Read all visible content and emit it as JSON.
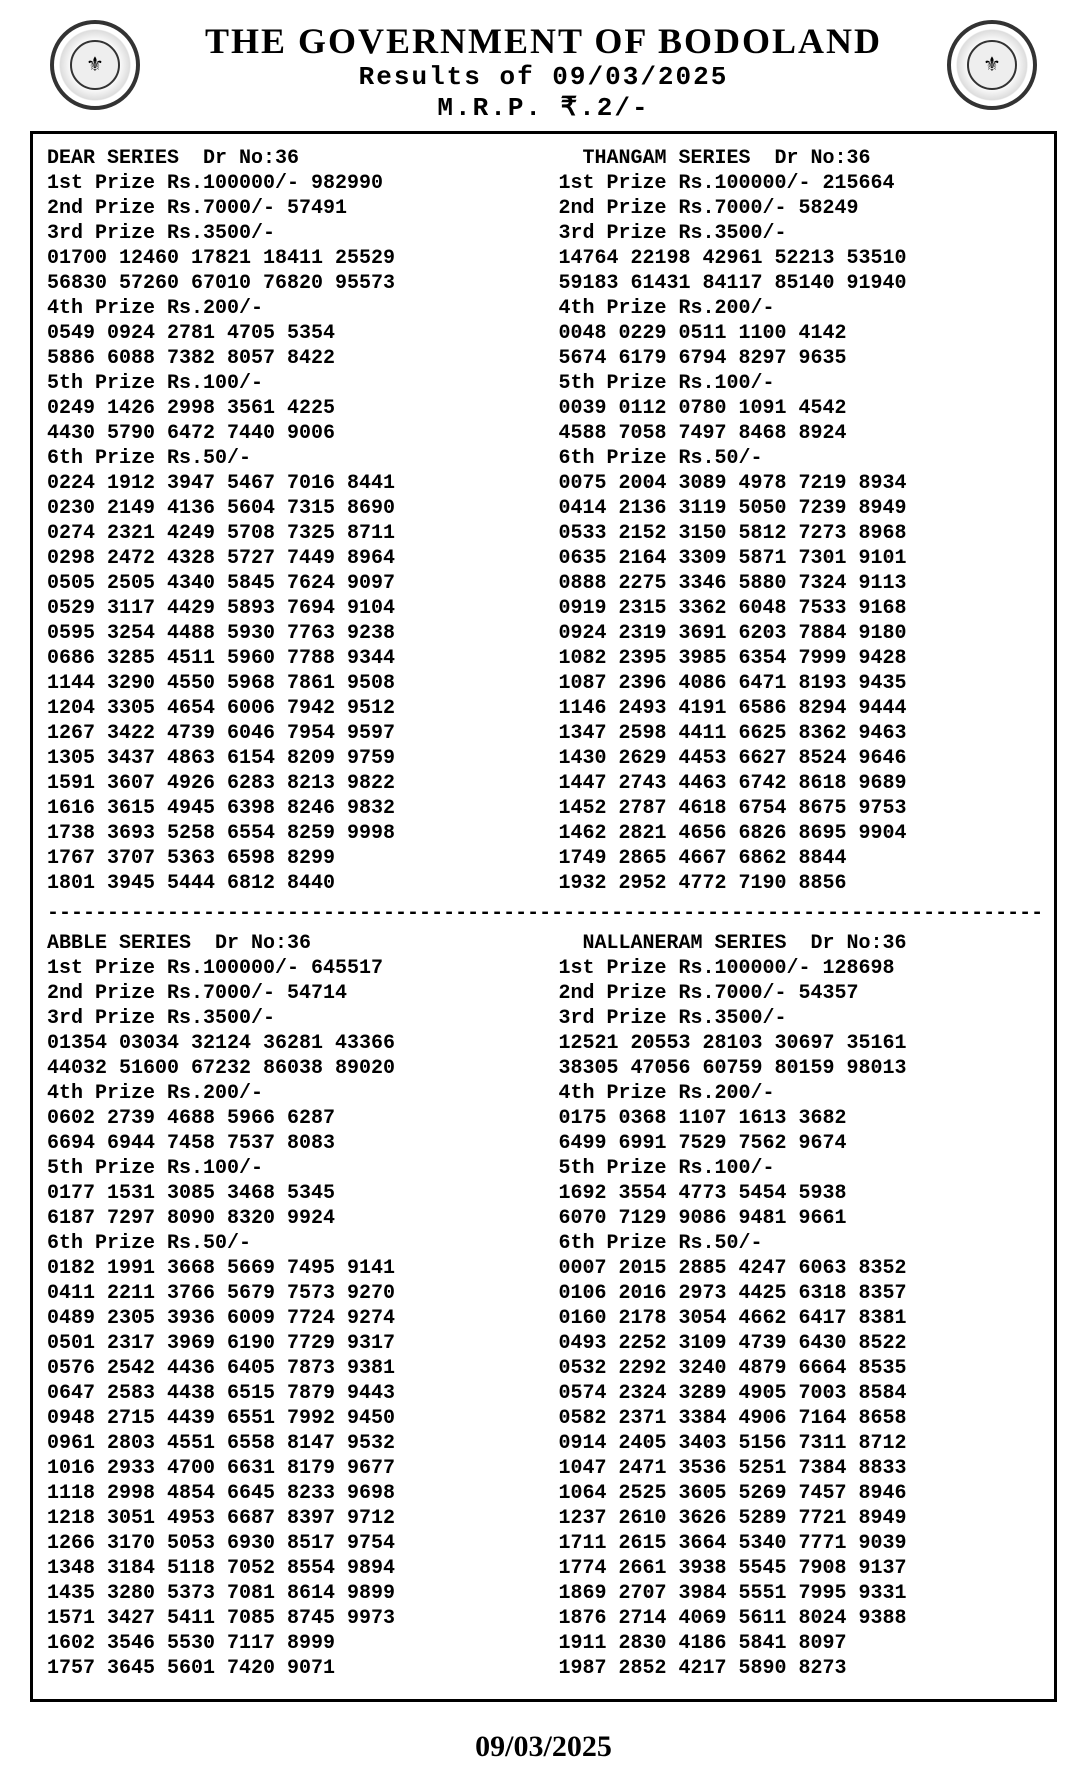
{
  "header": {
    "title": "THE GOVERNMENT OF BODOLAND",
    "subtitle": "Results of 09/03/2025",
    "mrp": "M.R.P.  ₹.2/-"
  },
  "footer_date": "09/03/2025",
  "divider_char": "-",
  "series": [
    {
      "name": "DEAR SERIES",
      "draw": "Dr No:36",
      "prize1_label": "1st Prize Rs.100000/-",
      "prize1_num": "982990",
      "prize2_label": "2nd Prize Rs.7000/-",
      "prize2_num": "57491",
      "prize3_label": "3rd Prize Rs.3500/-",
      "prize3_rows": [
        "01700 12460 17821 18411 25529",
        "56830 57260 67010 76820 95573"
      ],
      "prize4_label": "4th Prize Rs.200/-",
      "prize4_rows": [
        "0549 0924 2781 4705 5354",
        "5886 6088 7382 8057 8422"
      ],
      "prize5_label": "5th Prize Rs.100/-",
      "prize5_rows": [
        "0249 1426 2998 3561 4225",
        "4430 5790 6472 7440 9006"
      ],
      "prize6_label": "6th Prize Rs.50/-",
      "prize6_rows": [
        "0224 1912 3947 5467 7016 8441",
        "0230 2149 4136 5604 7315 8690",
        "0274 2321 4249 5708 7325 8711",
        "0298 2472 4328 5727 7449 8964",
        "0505 2505 4340 5845 7624 9097",
        "0529 3117 4429 5893 7694 9104",
        "0595 3254 4488 5930 7763 9238",
        "0686 3285 4511 5960 7788 9344",
        "1144 3290 4550 5968 7861 9508",
        "1204 3305 4654 6006 7942 9512",
        "1267 3422 4739 6046 7954 9597",
        "1305 3437 4863 6154 8209 9759",
        "1591 3607 4926 6283 8213 9822",
        "1616 3615 4945 6398 8246 9832",
        "1738 3693 5258 6554 8259 9998",
        "1767 3707 5363 6598 8299",
        "1801 3945 5444 6812 8440"
      ]
    },
    {
      "name": "THANGAM SERIES",
      "draw": "Dr No:36",
      "prize1_label": "1st Prize Rs.100000/-",
      "prize1_num": "215664",
      "prize2_label": "2nd Prize Rs.7000/-",
      "prize2_num": "58249",
      "prize3_label": "3rd Prize Rs.3500/-",
      "prize3_rows": [
        "14764 22198 42961 52213 53510",
        "59183 61431 84117 85140 91940"
      ],
      "prize4_label": "4th Prize Rs.200/-",
      "prize4_rows": [
        "0048 0229 0511 1100 4142",
        "5674 6179 6794 8297 9635"
      ],
      "prize5_label": "5th Prize Rs.100/-",
      "prize5_rows": [
        "0039 0112 0780 1091 4542",
        "4588 7058 7497 8468 8924"
      ],
      "prize6_label": "6th Prize Rs.50/-",
      "prize6_rows": [
        "0075 2004 3089 4978 7219 8934",
        "0414 2136 3119 5050 7239 8949",
        "0533 2152 3150 5812 7273 8968",
        "0635 2164 3309 5871 7301 9101",
        "0888 2275 3346 5880 7324 9113",
        "0919 2315 3362 6048 7533 9168",
        "0924 2319 3691 6203 7884 9180",
        "1082 2395 3985 6354 7999 9428",
        "1087 2396 4086 6471 8193 9435",
        "1146 2493 4191 6586 8294 9444",
        "1347 2598 4411 6625 8362 9463",
        "1430 2629 4453 6627 8524 9646",
        "1447 2743 4463 6742 8618 9689",
        "1452 2787 4618 6754 8675 9753",
        "1462 2821 4656 6826 8695 9904",
        "1749 2865 4667 6862 8844",
        "1932 2952 4772 7190 8856"
      ]
    },
    {
      "name": "ABBLE SERIES",
      "draw": "Dr No:36",
      "prize1_label": "1st Prize Rs.100000/-",
      "prize1_num": "645517",
      "prize2_label": "2nd Prize Rs.7000/-",
      "prize2_num": "54714",
      "prize3_label": "3rd Prize Rs.3500/-",
      "prize3_rows": [
        "01354 03034 32124 36281 43366",
        "44032 51600 67232 86038 89020"
      ],
      "prize4_label": "4th Prize Rs.200/-",
      "prize4_rows": [
        "0602 2739 4688 5966 6287",
        "6694 6944 7458 7537 8083"
      ],
      "prize5_label": "5th Prize Rs.100/-",
      "prize5_rows": [
        "0177 1531 3085 3468 5345",
        "6187 7297 8090 8320 9924"
      ],
      "prize6_label": "6th Prize Rs.50/-",
      "prize6_rows": [
        "0182 1991 3668 5669 7495 9141",
        "0411 2211 3766 5679 7573 9270",
        "0489 2305 3936 6009 7724 9274",
        "0501 2317 3969 6190 7729 9317",
        "0576 2542 4436 6405 7873 9381",
        "0647 2583 4438 6515 7879 9443",
        "0948 2715 4439 6551 7992 9450",
        "0961 2803 4551 6558 8147 9532",
        "1016 2933 4700 6631 8179 9677",
        "1118 2998 4854 6645 8233 9698",
        "1218 3051 4953 6687 8397 9712",
        "1266 3170 5053 6930 8517 9754",
        "1348 3184 5118 7052 8554 9894",
        "1435 3280 5373 7081 8614 9899",
        "1571 3427 5411 7085 8745 9973",
        "1602 3546 5530 7117 8999",
        "1757 3645 5601 7420 9071"
      ]
    },
    {
      "name": "NALLANERAM SERIES",
      "draw": "Dr No:36",
      "prize1_label": "1st Prize Rs.100000/-",
      "prize1_num": "128698",
      "prize2_label": "2nd Prize Rs.7000/-",
      "prize2_num": "54357",
      "prize3_label": "3rd Prize Rs.3500/-",
      "prize3_rows": [
        "12521 20553 28103 30697 35161",
        "38305 47056 60759 80159 98013"
      ],
      "prize4_label": "4th Prize Rs.200/-",
      "prize4_rows": [
        "0175 0368 1107 1613 3682",
        "6499 6991 7529 7562 9674"
      ],
      "prize5_label": "5th Prize Rs.100/-",
      "prize5_rows": [
        "1692 3554 4773 5454 5938",
        "6070 7129 9086 9481 9661"
      ],
      "prize6_label": "6th Prize Rs.50/-",
      "prize6_rows": [
        "0007 2015 2885 4247 6063 8352",
        "0106 2016 2973 4425 6318 8357",
        "0160 2178 3054 4662 6417 8381",
        "0493 2252 3109 4739 6430 8522",
        "0532 2292 3240 4879 6664 8535",
        "0574 2324 3289 4905 7003 8584",
        "0582 2371 3384 4906 7164 8658",
        "0914 2405 3403 5156 7311 8712",
        "1047 2471 3536 5251 7384 8833",
        "1064 2525 3605 5269 7457 8946",
        "1237 2610 3626 5289 7721 8949",
        "1711 2615 3664 5340 7771 9039",
        "1774 2661 3938 5545 7908 9137",
        "1869 2707 3984 5551 7995 9331",
        "1876 2714 4069 5611 8024 9388",
        "1911 2830 4186 5841 8097",
        "1987 2852 4217 5890 8273"
      ]
    }
  ]
}
